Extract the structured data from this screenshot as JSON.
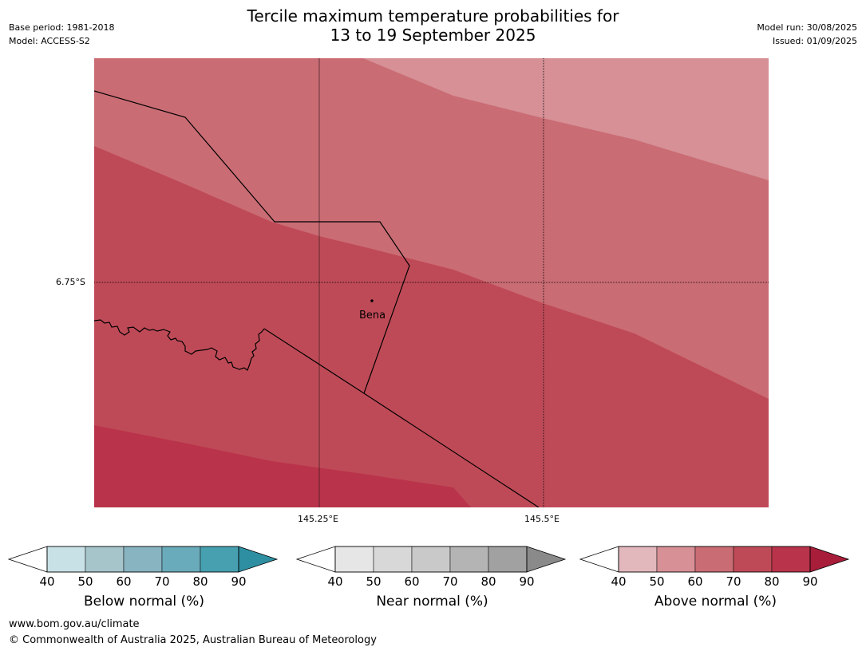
{
  "header": {
    "title_line1": "Tercile maximum temperature probabilities for",
    "title_line2": "13 to 19 September 2025",
    "base_period": "Base period: 1981-2018",
    "model": "Model: ACCESS-S2",
    "model_run": "Model run: 30/08/2025",
    "issued": "Issued: 01/09/2025"
  },
  "map": {
    "lat_label": "6.75°S",
    "lon_labels": [
      "145.25°E",
      "145.5°E"
    ],
    "place": "Bena"
  },
  "legend": {
    "below": {
      "title": "Below normal (%)",
      "ticks": [
        "40",
        "50",
        "60",
        "70",
        "80",
        "90"
      ],
      "colors": [
        "#c8e1e6",
        "#a6c5cb",
        "#88b4c2",
        "#6aabbb",
        "#46a0b0",
        "#2e8fa2"
      ]
    },
    "near": {
      "title": "Near normal (%)",
      "ticks": [
        "40",
        "50",
        "60",
        "70",
        "80",
        "90"
      ],
      "colors": [
        "#e6e6e6",
        "#d8d8d8",
        "#c9c9c9",
        "#b4b4b4",
        "#a1a1a1",
        "#8a8a8a"
      ]
    },
    "above": {
      "title": "Above normal (%)",
      "ticks": [
        "40",
        "50",
        "60",
        "70",
        "80",
        "90"
      ],
      "colors": [
        "#e2b8bd",
        "#d69096",
        "#ca6c74",
        "#bf4a57",
        "#b9334a",
        "#a71d3a"
      ]
    }
  },
  "footer": {
    "url": "www.bom.gov.au/climate",
    "copyright": "© Commonwealth of Australia 2025, Australian Bureau of Meteorology"
  }
}
